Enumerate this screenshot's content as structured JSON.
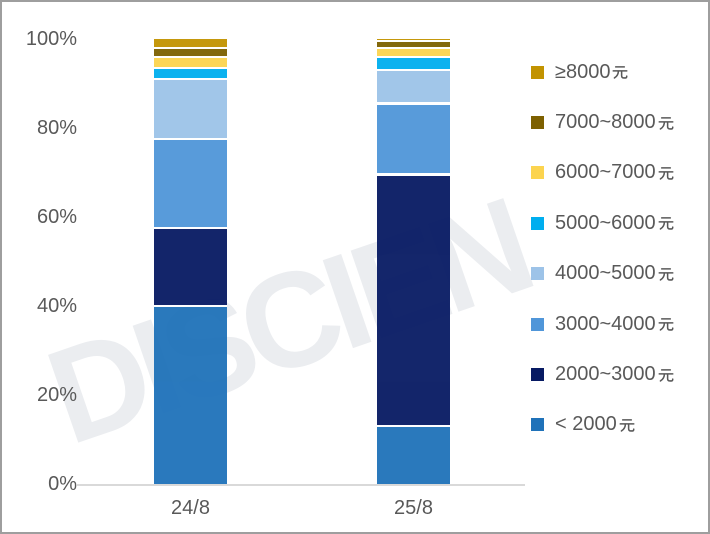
{
  "watermark": {
    "text": "DISCIEN"
  },
  "axis": {
    "y_ticks": [
      {
        "label": "100%",
        "value": 100
      },
      {
        "label": "80%",
        "value": 80
      },
      {
        "label": "60%",
        "value": 60
      },
      {
        "label": "40%",
        "value": 40
      },
      {
        "label": "20%",
        "value": 20
      },
      {
        "label": "0%",
        "value": 0
      }
    ]
  },
  "chart_data": {
    "type": "bar",
    "subtype": "100-percent-stacked-column",
    "title": "",
    "xlabel": "",
    "ylabel": "",
    "ylim": [
      0,
      100
    ],
    "grid": false,
    "legend_position": "right",
    "categories": [
      "24/8",
      "25/8"
    ],
    "series": [
      {
        "name": "< 2000元",
        "color": "#1f72b9",
        "values": [
          40,
          13
        ]
      },
      {
        "name": "2000~3000元",
        "color": "#071a63",
        "values": [
          17.5,
          56.5
        ]
      },
      {
        "name": "3000~4000元",
        "color": "#5096d9",
        "values": [
          20,
          16
        ]
      },
      {
        "name": "4000~5000元",
        "color": "#9dc3e8",
        "values": [
          13.5,
          7.5
        ]
      },
      {
        "name": "5000~6000元",
        "color": "#00aeef",
        "values": [
          2.5,
          3
        ]
      },
      {
        "name": "6000~7000元",
        "color": "#fcd44f",
        "values": [
          2.5,
          2
        ]
      },
      {
        "name": "7000~8000元",
        "color": "#7d6000",
        "values": [
          2,
          1.5
        ]
      },
      {
        "name": "≥8000元",
        "color": "#c29300",
        "values": [
          2,
          0.5
        ]
      }
    ],
    "legend_top_to_bottom": [
      "≥8000元",
      "7000~8000元",
      "6000~7000元",
      "5000~6000元",
      "4000~5000元",
      "3000~4000元",
      "2000~3000元",
      "< 2000元"
    ]
  },
  "ui_colors": {
    "text": "#595959",
    "axis_line": "#d9d9d9",
    "border": "#9e9e9e",
    "watermark": "#ebedf0",
    "segment_separator": "#ffffff"
  }
}
